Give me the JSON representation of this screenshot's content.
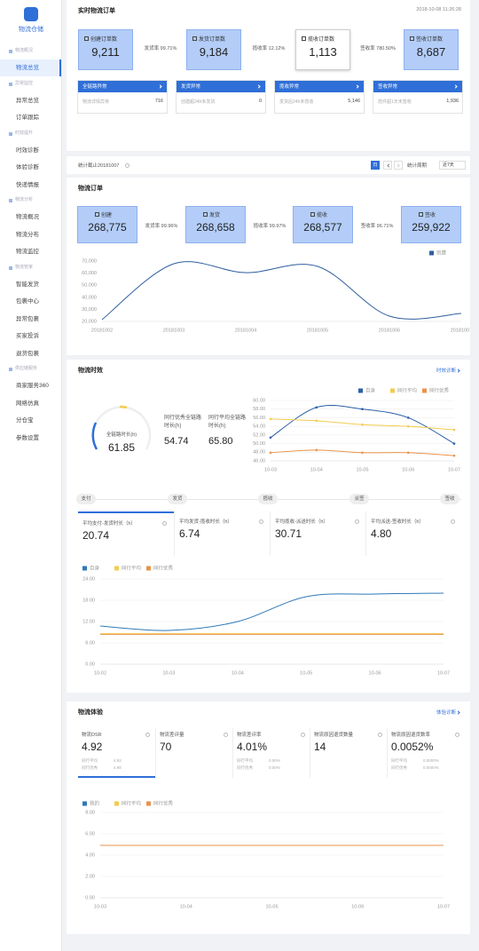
{
  "sidebar": {
    "logo": "物流仓储",
    "groups": [
      {
        "title": "物流概况",
        "items": [
          "物流总览"
        ]
      },
      {
        "title": "异常监控",
        "items": [
          "异常总览",
          "订单跟踪"
        ]
      },
      {
        "title": "时效提升",
        "items": [
          "时效诊断",
          "体验诊断",
          "快递情报"
        ]
      },
      {
        "title": "物流分析",
        "items": [
          "物流概况",
          "物流分布",
          "物流监控"
        ]
      },
      {
        "title": "物流管家",
        "items": [
          "智能发货",
          "包裹中心",
          "异常包裹",
          "买家投诉",
          "退货包裹"
        ]
      },
      {
        "title": "供应链服务",
        "items": [
          "商家服务360",
          "网络仿真",
          "分仓宝",
          "参数设置"
        ]
      }
    ]
  },
  "realtime": {
    "title": "实时物流订单",
    "timestamp": "2018-10-08 11:26:28",
    "kpis": [
      {
        "label": "创建订单数",
        "value": "9,211"
      },
      {
        "label": "发货订单数",
        "value": "9,184"
      },
      {
        "label": "揽收订单数",
        "value": "1,113"
      },
      {
        "label": "签收订单数",
        "value": "8,687"
      }
    ],
    "rates": [
      "发货率 99.71%",
      "揽收率 12.12%",
      "签收率 780.50%"
    ],
    "exceptions": [
      {
        "title": "全链路异常",
        "desc": "物流详情异常",
        "value": "716"
      },
      {
        "title": "发货异常",
        "desc": "创建超24h未发货",
        "value": "0"
      },
      {
        "title": "揽收异常",
        "desc": "发货后24h未揽收",
        "value": "5,146"
      },
      {
        "title": "签收异常",
        "desc": "揽件超1天未签收",
        "value": "1,936"
      }
    ]
  },
  "stat_bar": {
    "text": "统计截止20181007",
    "day": "日",
    "period_label": "统计周期",
    "period": "近7天"
  },
  "orders": {
    "title": "物流订单",
    "kpis": [
      {
        "label": "创建",
        "value": "268,775"
      },
      {
        "label": "发货",
        "value": "268,658"
      },
      {
        "label": "揽收",
        "value": "268,577"
      },
      {
        "label": "签收",
        "value": "259,922"
      }
    ],
    "rates": [
      "发货率 99.96%",
      "揽收率 99.97%",
      "签收率 96.71%"
    ],
    "chart": {
      "type": "line",
      "categories": [
        "20181002",
        "20181003",
        "20181004",
        "20181005",
        "20181006",
        "20181007"
      ],
      "series": [
        {
          "name": "创建",
          "color": "#2e5e9e",
          "values": [
            21500,
            67800,
            60400,
            65600,
            24400,
            26600
          ]
        }
      ],
      "ylim": [
        20000,
        70000
      ],
      "yticks": [
        {
          "value": 20000,
          "label": "20,000"
        },
        {
          "value": 30000,
          "label": "30,000"
        },
        {
          "value": 40000,
          "label": "40,000"
        },
        {
          "value": 50000,
          "label": "50,000"
        },
        {
          "value": 60000,
          "label": "60,000"
        },
        {
          "value": 70000,
          "label": "70,000"
        }
      ],
      "grid": false,
      "legend": "top-right",
      "markers": false
    }
  },
  "timeliness": {
    "title": "物流时效",
    "link": "时效诊断",
    "gauge": {
      "label": "全链路时长(h)",
      "value": "61.85"
    },
    "peers": [
      {
        "label": "同行优秀全链路时长(h)",
        "value": "54.74"
      },
      {
        "label": "同行平均全链路时长(h)",
        "value": "65.80"
      }
    ],
    "chart": {
      "type": "line",
      "categories": [
        "10-03",
        "10-04",
        "10-05",
        "10-06",
        "10-07"
      ],
      "series": [
        {
          "name": "自身",
          "color": "#2b5fa8",
          "values": [
            51.4,
            58.4,
            58,
            56,
            50
          ]
        },
        {
          "name": "同行平均",
          "color": "#f2cc4f",
          "values": [
            55.7,
            55.3,
            54.4,
            54,
            53.2
          ]
        },
        {
          "name": "同行优秀",
          "color": "#e8934a",
          "values": [
            47.9,
            48.5,
            47.9,
            47.9,
            47.2
          ]
        }
      ],
      "ylim": [
        46,
        60
      ],
      "yticks": [
        {
          "value": 46,
          "label": "46.00"
        },
        {
          "value": 48,
          "label": "48.00"
        },
        {
          "value": 50,
          "label": "50.00"
        },
        {
          "value": 52,
          "label": "52.00"
        },
        {
          "value": 54,
          "label": "54.00"
        },
        {
          "value": 56,
          "label": "56.00"
        },
        {
          "value": 58,
          "label": "58.00"
        },
        {
          "value": 60,
          "label": "60.00"
        }
      ],
      "grid": true,
      "legend": "top-right",
      "markers": true
    },
    "steps": [
      "支付",
      "发货",
      "揽收",
      "派签",
      "签收"
    ],
    "metrics": [
      {
        "label": "平均支付-发货时长（h）",
        "value": "20.74"
      },
      {
        "label": "平均发货-揽收时长（h）",
        "value": "6.74"
      },
      {
        "label": "平均揽收-派送时长（h）",
        "value": "30.71"
      },
      {
        "label": "平均派送-签收时长（h）",
        "value": "4.80"
      }
    ],
    "trend": {
      "type": "line",
      "categories": [
        "10-02",
        "10-03",
        "10-04",
        "10-05",
        "10-06",
        "10-07"
      ],
      "series": [
        {
          "name": "自身",
          "color": "#2e78b8",
          "values": [
            10.75,
            9.5,
            12,
            19,
            19.75,
            20
          ]
        },
        {
          "name": "同行平均",
          "color": "#f2cc4f",
          "values": [
            8.6,
            8.6,
            8.6,
            8.6,
            8.6,
            8.6
          ]
        },
        {
          "name": "同行优秀",
          "color": "#e8934a",
          "values": [
            8.4,
            8.4,
            8.4,
            8.4,
            8.4,
            8.4
          ]
        }
      ],
      "ylim": [
        0,
        24
      ],
      "yticks": [
        {
          "value": 0,
          "label": "0.00"
        },
        {
          "value": 6,
          "label": "6.00"
        },
        {
          "value": 12,
          "label": "12.00"
        },
        {
          "value": 18,
          "label": "18.00"
        },
        {
          "value": 24,
          "label": "24.00"
        }
      ],
      "grid": true,
      "legend": "top-left",
      "markers": false
    }
  },
  "experience": {
    "title": "物流体验",
    "link": "体验诊断",
    "metrics": [
      {
        "label": "物流DSR",
        "value": "4.92",
        "peers": [
          {
            "label": "同行平均",
            "value": "4.92"
          },
          {
            "label": "同行优秀",
            "value": "4.98"
          }
        ]
      },
      {
        "label": "物流差评量",
        "value": "70"
      },
      {
        "label": "物流差评率",
        "value": "4.01%",
        "peers": [
          {
            "label": "同行平均",
            "value": "0.00%"
          },
          {
            "label": "同行优秀",
            "value": "0.00%"
          }
        ]
      },
      {
        "label": "物流原因退货数量",
        "value": "14"
      },
      {
        "label": "物流原因退货数率",
        "value": "0.0052%",
        "peers": [
          {
            "label": "同行平均",
            "value": "0.0000%"
          },
          {
            "label": "同行优秀",
            "value": "0.0000%"
          }
        ]
      }
    ],
    "chart": {
      "type": "line",
      "categories": [
        "10-03",
        "10-04",
        "10-05",
        "10-06",
        "10-07"
      ],
      "series": [
        {
          "name": "我的",
          "color": "#2e78b8",
          "values": [
            4.92,
            4.92,
            4.92,
            4.92,
            4.92
          ]
        },
        {
          "name": "同行平均",
          "color": "#f2cc4f",
          "values": [
            4.92,
            4.92,
            4.92,
            4.92,
            4.92
          ]
        },
        {
          "name": "同行优秀",
          "color": "#e8934a",
          "values": [
            4.92,
            4.92,
            4.92,
            4.92,
            4.92
          ]
        }
      ],
      "ylim": [
        0,
        8
      ],
      "yticks": [
        {
          "value": 0,
          "label": "0.00"
        },
        {
          "value": 2,
          "label": "2.00"
        },
        {
          "value": 4,
          "label": "4.00"
        },
        {
          "value": 6,
          "label": "6.00"
        },
        {
          "value": 8,
          "label": "8.00"
        }
      ],
      "grid": true,
      "legend": "top-left",
      "markers": false
    }
  }
}
